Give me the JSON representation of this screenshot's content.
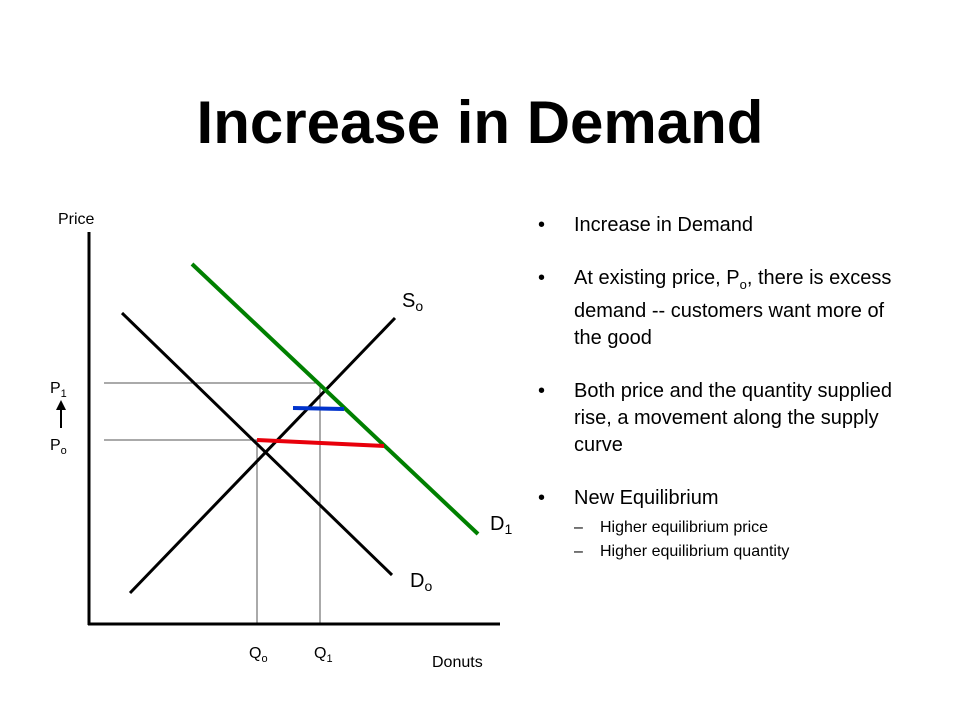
{
  "slide": {
    "title": "Increase in Demand"
  },
  "diagram": {
    "y_axis_label": "Price",
    "x_axis_label": "Donuts",
    "p1": {
      "base": "P",
      "sub": "1"
    },
    "po": {
      "base": "P",
      "sub": "o"
    },
    "qo": {
      "base": "Q",
      "sub": "o"
    },
    "q1": {
      "base": "Q",
      "sub": "1"
    },
    "supply": {
      "base": "S",
      "sub": "o"
    },
    "demand_old": {
      "base": "D",
      "sub": "o"
    },
    "demand_new": {
      "base": "D",
      "sub": "1"
    },
    "colors": {
      "axis": "#000000",
      "supply": "#000000",
      "demand_old": "#000000",
      "demand_new": "#008000",
      "excess_demand_at_po": "#e8000b",
      "excess_at_intermediate": "#0033cc",
      "guide": "#555555"
    }
  },
  "bullets": [
    {
      "text": "Increase in Demand"
    },
    {
      "pre": "At existing price, P",
      "sub": "o",
      "post": ", there is excess demand -- customers want more of the good"
    },
    {
      "text": "Both price and the quantity supplied rise, a movement along the supply curve"
    },
    {
      "text": "New Equilibrium",
      "sub_items": [
        "Higher equilibrium price",
        "Higher equilibrium quantity"
      ]
    }
  ]
}
